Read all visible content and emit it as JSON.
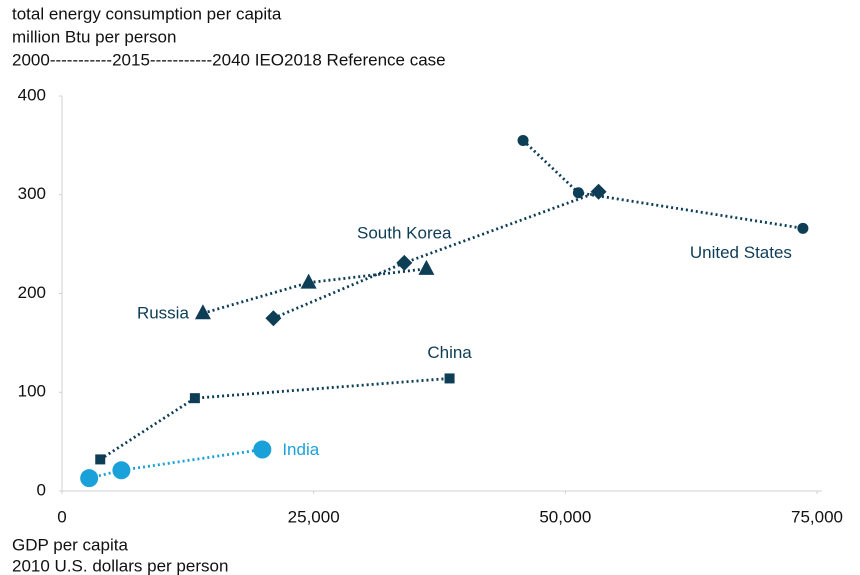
{
  "chart_data": {
    "type": "scatter",
    "title": "total energy consumption per capita",
    "subtitle": "million Btu per person",
    "annotation": "2000-----------2015-----------2040 IEO2018 Reference case",
    "x_label": [
      "GDP per capita",
      "2010 U.S. dollars per person"
    ],
    "xlim": [
      0,
      75000
    ],
    "ylim": [
      0,
      400
    ],
    "xticks": [
      0,
      {
        "value": 25000,
        "label": "25,000"
      },
      {
        "value": 50000,
        "label": "50,000"
      },
      {
        "value": 75000,
        "label": "75,000"
      }
    ],
    "yticks": [
      0,
      100,
      200,
      300,
      400
    ],
    "grid": false,
    "series": [
      {
        "name": "United States",
        "color": "#0e3d56",
        "marker": "circle",
        "x": [
          45800,
          51300,
          73600
        ],
        "values": [
          355,
          302,
          266
        ]
      },
      {
        "name": "South Korea",
        "color": "#0e3d56",
        "marker": "diamond",
        "x": [
          21000,
          34000,
          53300
        ],
        "values": [
          175,
          231,
          303
        ]
      },
      {
        "name": "Russia",
        "color": "#0e3d56",
        "marker": "triangle",
        "x": [
          14000,
          24500,
          36200
        ],
        "values": [
          180,
          211,
          225
        ]
      },
      {
        "name": "China",
        "color": "#0e3d56",
        "marker": "square",
        "x": [
          3800,
          13200,
          38500
        ],
        "values": [
          32,
          94,
          114
        ]
      },
      {
        "name": "India",
        "color": "#1ba1d9",
        "marker": "big-circle",
        "x": [
          2700,
          5900,
          19900
        ],
        "values": [
          13,
          21,
          42
        ]
      }
    ]
  }
}
